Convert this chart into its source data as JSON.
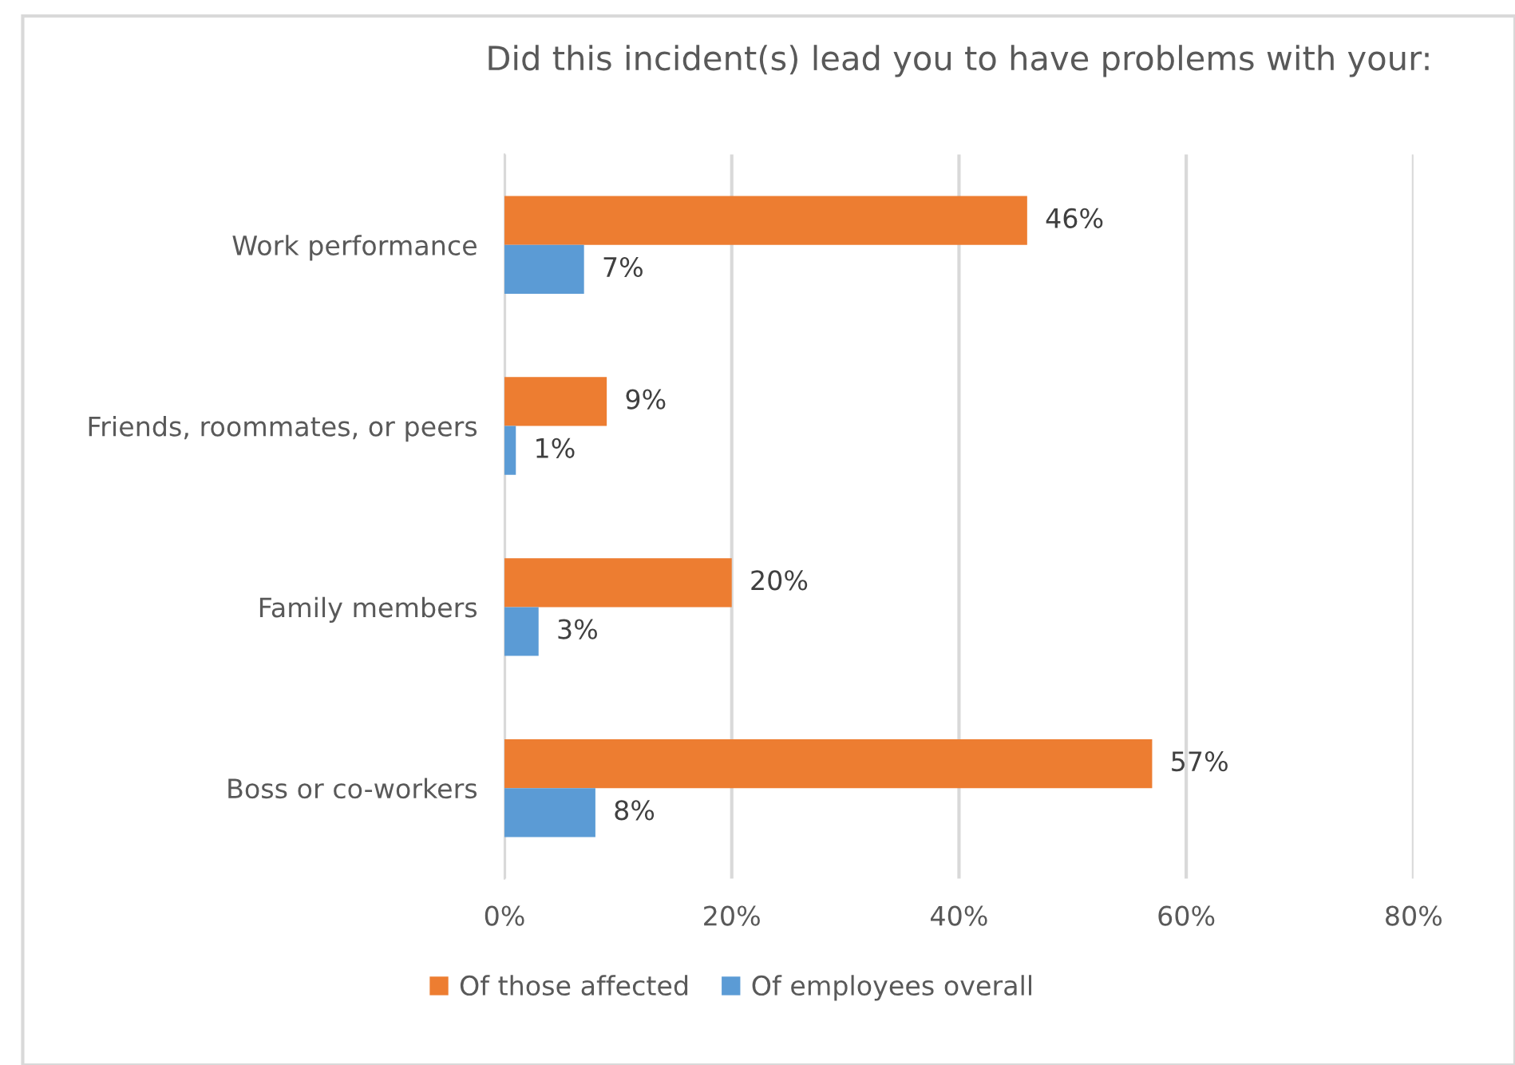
{
  "chart_data": {
    "type": "bar",
    "orientation": "horizontal",
    "title": "Did this incident(s) lead you to have problems with your:",
    "categories": [
      "Work performance",
      "Friends, roommates, or peers",
      "Family members",
      "Boss or co-workers"
    ],
    "series": [
      {
        "name": "Of those affected",
        "color": "#ed7d31",
        "values": [
          46,
          9,
          20,
          57
        ],
        "value_labels": [
          "46%",
          "9%",
          "20%",
          "57%"
        ]
      },
      {
        "name": "Of employees overall",
        "color": "#5b9bd5",
        "values": [
          7,
          1,
          3,
          8
        ],
        "value_labels": [
          "7%",
          "1%",
          "3%",
          "8%"
        ]
      }
    ],
    "xlim": [
      0,
      80
    ],
    "xticks": [
      {
        "value": 0,
        "label": "0%"
      },
      {
        "value": 20,
        "label": "20%"
      },
      {
        "value": 40,
        "label": "40%"
      },
      {
        "value": 60,
        "label": "60%"
      },
      {
        "value": 80,
        "label": "80%"
      }
    ],
    "grid": "x",
    "legend": "bottom"
  }
}
